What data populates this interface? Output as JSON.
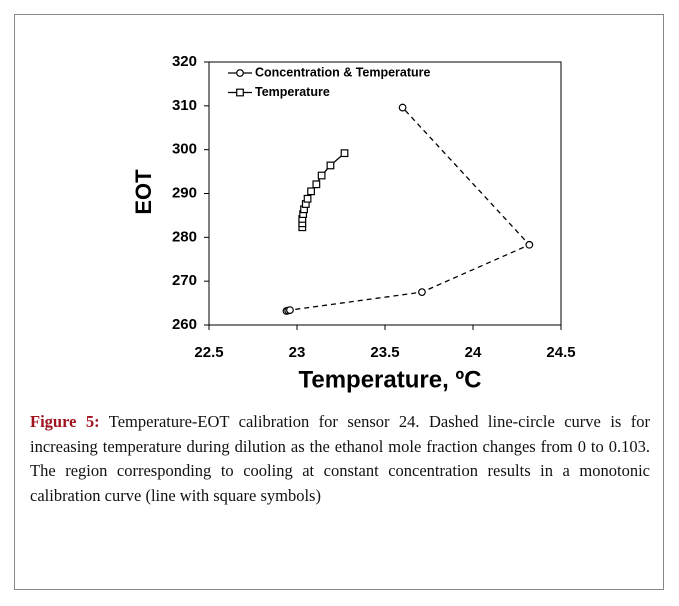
{
  "chart_data": {
    "type": "line",
    "xlabel": "Temperature, ºC",
    "ylabel": "EOT",
    "xlim": [
      22.5,
      24.5
    ],
    "xticks": [
      22.5,
      23,
      23.5,
      24,
      24.5
    ],
    "ylim": [
      260,
      320
    ],
    "yticks": [
      260,
      270,
      280,
      290,
      300,
      310,
      320
    ],
    "legend": "upper left",
    "series": [
      {
        "name": "Concentration & Temperature",
        "color": "#000000",
        "marker": "circle",
        "dash": true,
        "x": [
          22.94,
          22.95,
          22.96,
          23.71,
          24.32,
          23.6
        ],
        "values": [
          263.2,
          263.3,
          263.4,
          267.5,
          278.3,
          309.6
        ]
      },
      {
        "name": "Temperature",
        "color": "#000000",
        "marker": "square",
        "dash": false,
        "x": [
          23.03,
          23.03,
          23.03,
          23.035,
          23.04,
          23.05,
          23.06,
          23.08,
          23.11,
          23.14,
          23.19,
          23.27
        ],
        "values": [
          282.3,
          283.2,
          284.2,
          285.3,
          286.4,
          287.6,
          288.8,
          290.5,
          292.1,
          294.1,
          296.4,
          299.2
        ]
      }
    ]
  },
  "caption": {
    "label": "Figure 5:",
    "text": "Temperature-EOT calibration for sensor 24. Dashed line-circle curve is for increasing temperature during dilution as the ethanol mole fraction changes from 0 to 0.103. The region corresponding to cooling at constant concentration results in a monotonic calibration curve (line with square symbols)"
  }
}
